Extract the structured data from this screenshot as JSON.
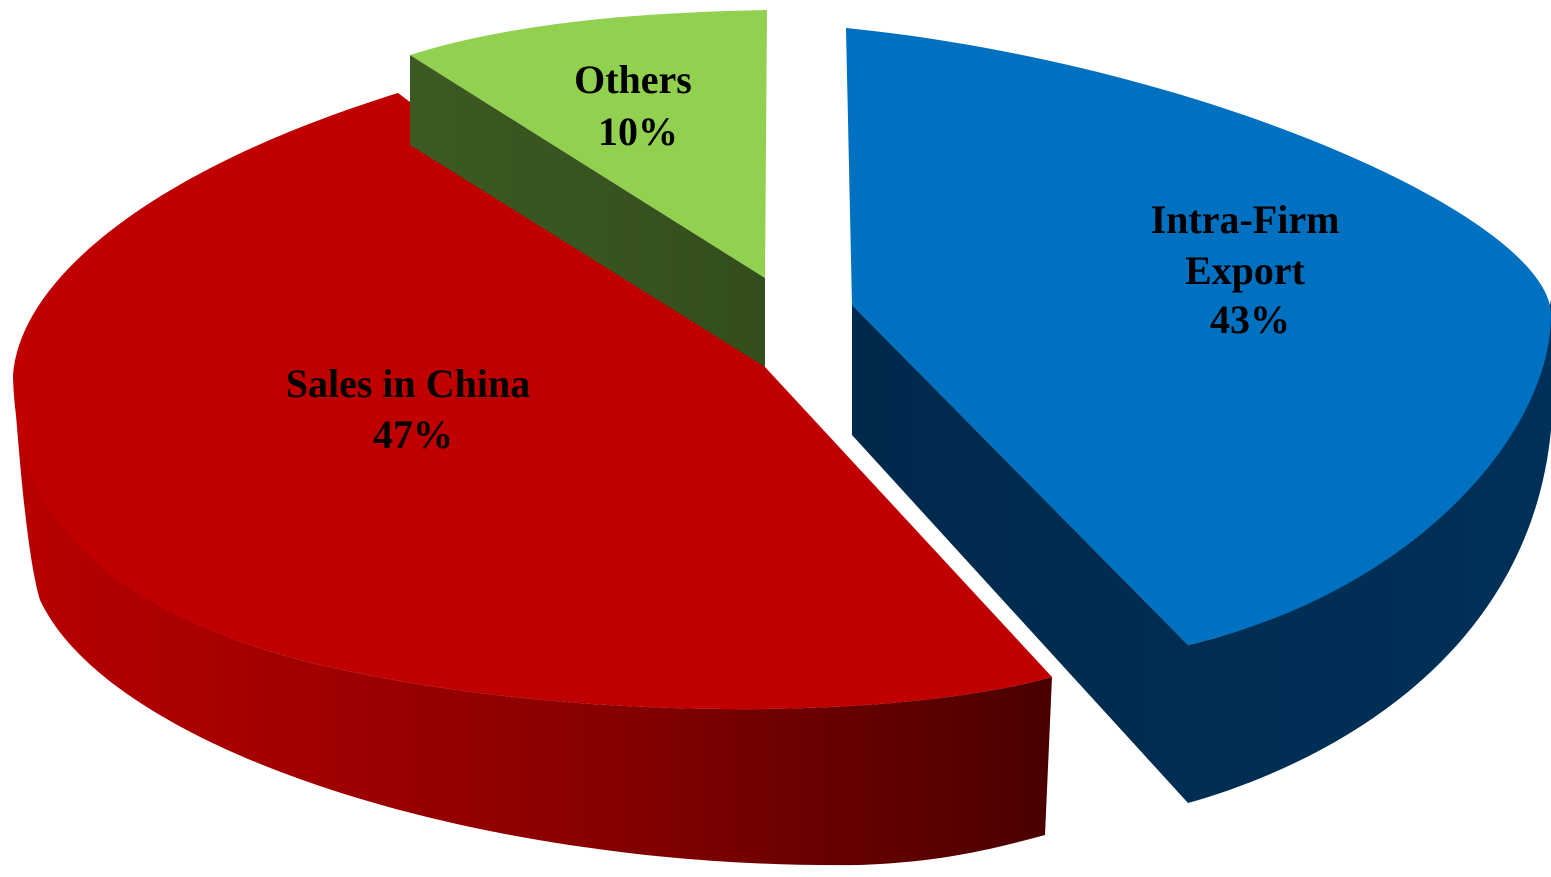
{
  "chart_data": {
    "type": "pie",
    "style": "3d-exploded",
    "slices": [
      {
        "label_lines": [
          "Others"
        ],
        "percent_label": "10%",
        "value": 10,
        "color": "#92D050",
        "side_color": "#3B5323"
      },
      {
        "label_lines": [
          "Intra-Firm",
          "Export"
        ],
        "percent_label": "43%",
        "value": 43,
        "color": "#0070C0",
        "side_color": "#002B4E"
      },
      {
        "label_lines": [
          "Sales in China"
        ],
        "percent_label": "47%",
        "value": 47,
        "color": "#C00000",
        "side_color": "#7A0000"
      }
    ]
  }
}
